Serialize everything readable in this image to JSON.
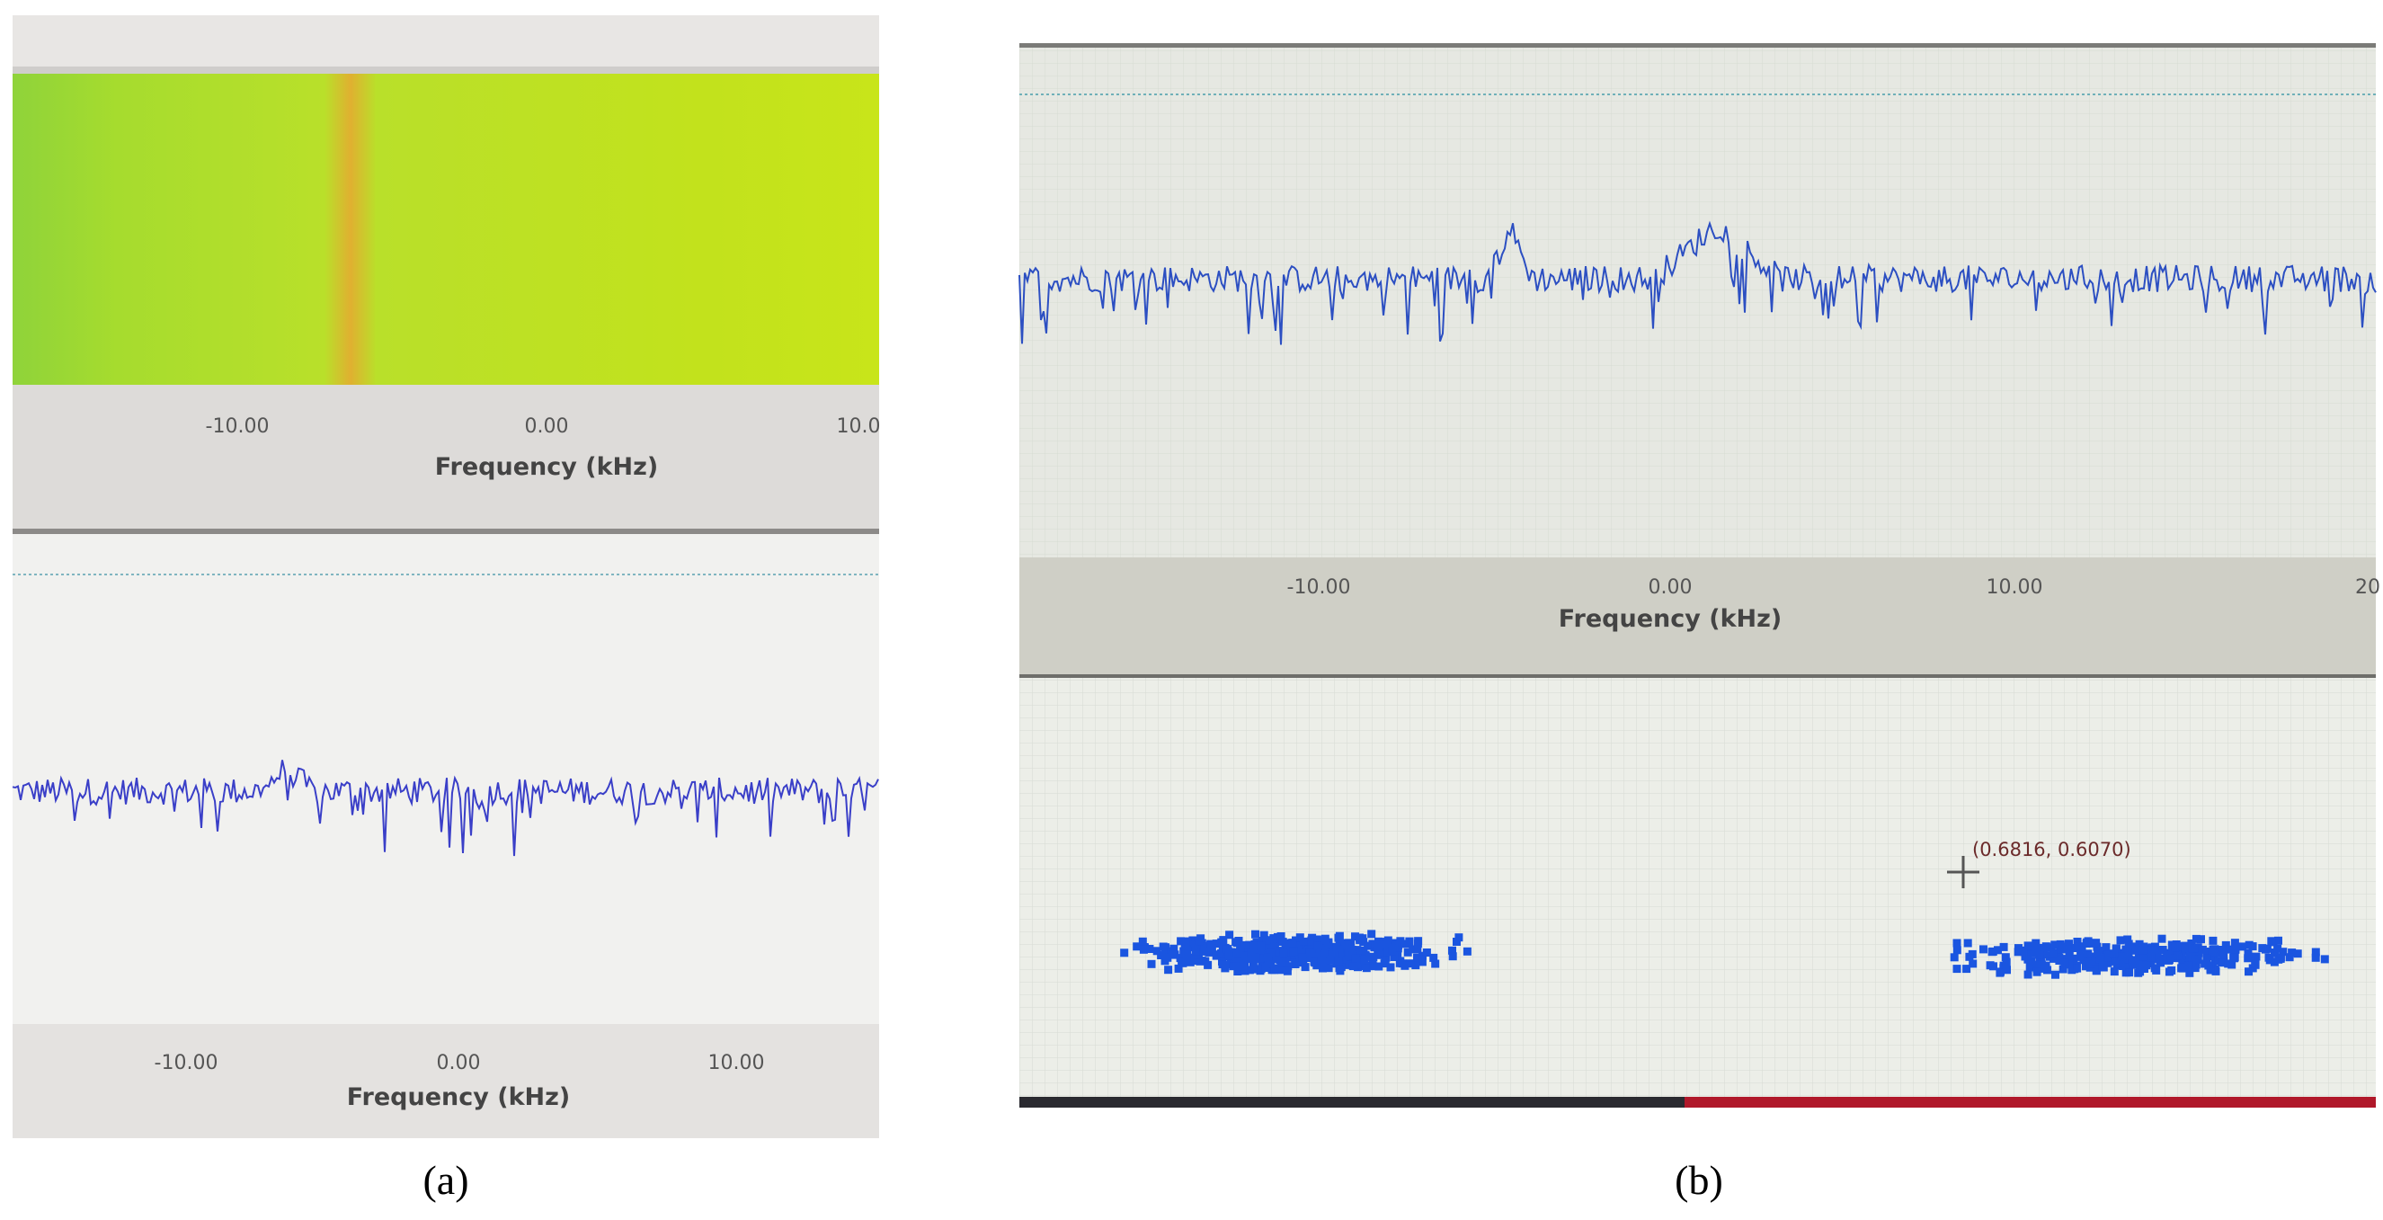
{
  "panels": [
    {
      "caption": "(a)",
      "waterfall_axis": {
        "ticks": [
          "-10.00",
          "0.00",
          "10.0"
        ],
        "label": "Frequency (kHz)"
      },
      "spectrum_axis": {
        "ticks": [
          "-10.00",
          "0.00",
          "10.00"
        ],
        "label": "Frequency (kHz)"
      }
    },
    {
      "caption": "(b)",
      "spectrum_axis": {
        "ticks": [
          "-10.00",
          "0.00",
          "10.00",
          "20"
        ],
        "label": "Frequency (kHz)"
      },
      "constellation": {
        "cursor_label": "(0.6816, 0.6070)"
      }
    }
  ]
}
